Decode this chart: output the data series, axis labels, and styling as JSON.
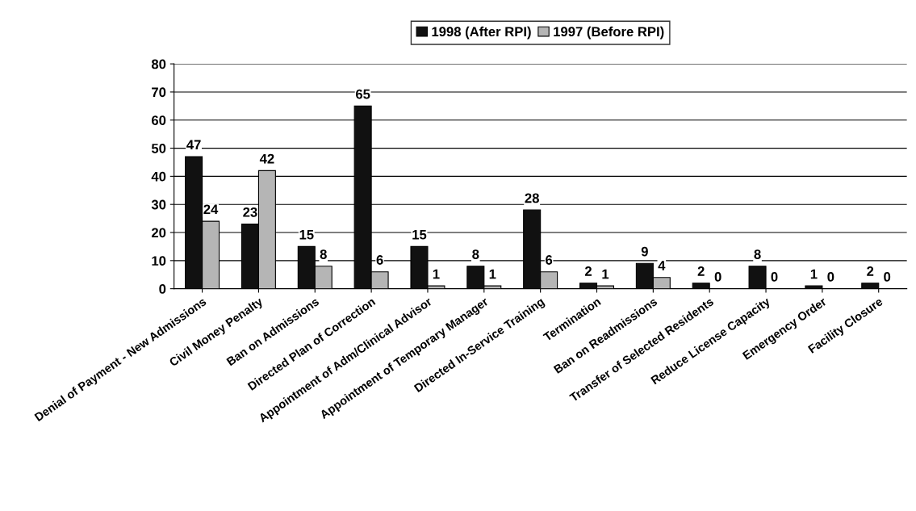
{
  "chart_data": {
    "type": "bar",
    "categories": [
      "Denial of Payment - New Admissions",
      "Civil Money Penalty",
      "Ban on Admissions",
      "Directed Plan of Correction",
      "Appointment of Adm/Clinical Advisor",
      "Appointment of Temporary Manager",
      "Directed In-Service Training",
      "Termination",
      "Ban on Readmissions",
      "Transfer of Selected Residents",
      "Reduce License Capacity",
      "Emergency Order",
      "Facility Closure"
    ],
    "series": [
      {
        "name": "1998 (After RPI)",
        "color": "#111111",
        "values": [
          47,
          23,
          15,
          65,
          15,
          8,
          28,
          2,
          9,
          2,
          8,
          1,
          2
        ]
      },
      {
        "name": "1997 (Before RPI)",
        "color": "#b5b5b5",
        "values": [
          24,
          42,
          8,
          6,
          1,
          1,
          6,
          1,
          4,
          0,
          0,
          0,
          0
        ]
      }
    ],
    "ylim": [
      0,
      80
    ],
    "yticks": [
      0,
      10,
      20,
      30,
      40,
      50,
      60,
      70,
      80
    ],
    "grid": "y",
    "legend": "top",
    "data_labels": true
  }
}
